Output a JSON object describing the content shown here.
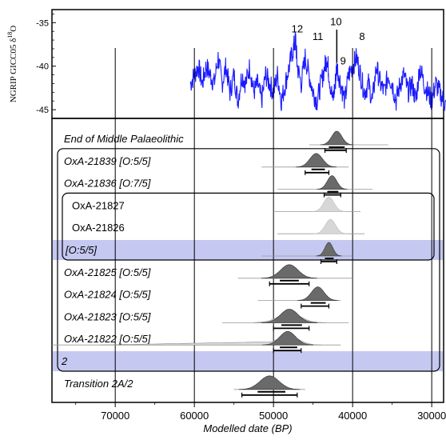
{
  "chart_data": [
    {
      "type": "line",
      "title": "",
      "ylabel": "NGRIP GICC05 δ¹⁸O",
      "ylabel_main": "NGRIP GICC05 δ",
      "ylabel_sup": "18",
      "ylabel_tail": "O",
      "ylim": [
        -46,
        -33.5
      ],
      "yticks": [
        -35,
        -40,
        -45
      ],
      "ytick_labels": [
        "-35",
        "-40",
        "-45"
      ],
      "line_color": "#1a1aff",
      "series": [
        {
          "x": [
            60500,
            60000,
            59500,
            59000,
            58500,
            58000,
            57500,
            57000,
            56500,
            56000,
            55500,
            55000,
            54500,
            54000,
            53500,
            53000,
            52500,
            52000,
            51500,
            51000,
            50500,
            50000,
            49500,
            49000,
            48500,
            48000,
            47500,
            47200,
            47000,
            46500,
            46000,
            45500,
            45000,
            44500,
            44000,
            43500,
            43200,
            43000,
            42500,
            42200,
            42000,
            41500,
            41000,
            40500,
            40000,
            39500,
            39000,
            38500,
            38000,
            37500,
            37000,
            36500,
            36000,
            35500,
            35000,
            34500,
            34000,
            33500,
            33000,
            32500,
            32000,
            31500,
            31000,
            30500,
            30000,
            29500,
            29000,
            28500,
            28000
          ],
          "y": [
            -42,
            -41,
            -40,
            -42,
            -40,
            -41,
            -42,
            -39,
            -42,
            -40,
            -43,
            -41,
            -44,
            -41,
            -42,
            -40,
            -43,
            -42,
            -44,
            -41,
            -42,
            -43,
            -41,
            -44,
            -42,
            -40,
            -38,
            -37,
            -40,
            -42,
            -39,
            -41,
            -43,
            -44,
            -42,
            -40,
            -39,
            -41,
            -44,
            -42,
            -40,
            -42,
            -44,
            -41,
            -40,
            -39,
            -41,
            -43,
            -42,
            -44,
            -40,
            -42,
            -43,
            -41,
            -42,
            -44,
            -42,
            -41,
            -43,
            -42,
            -44,
            -40,
            -42,
            -43,
            -44,
            -42,
            -43,
            -44,
            -45
          ]
        }
      ],
      "annotations": [
        {
          "text": "12",
          "x": 47000,
          "y": -36.1
        },
        {
          "text": "11",
          "x": 44400,
          "y": -37
        },
        {
          "text": "10",
          "x": 42100,
          "y": -35.3
        },
        {
          "text": "9",
          "x": 41200,
          "y": -39.8
        },
        {
          "text": "8",
          "x": 38800,
          "y": -37
        }
      ],
      "marker_x": 42000
    },
    {
      "type": "ridgeline",
      "xlabel": "Modelled date (BP)",
      "xlim": [
        78000,
        28500
      ],
      "xticks": [
        70000,
        60000,
        50000,
        40000,
        30000
      ],
      "xtick_labels": [
        "70000",
        "60000",
        "50000",
        "40000",
        "30000"
      ],
      "gridlines_x": [
        70000,
        60000,
        50000,
        40000,
        30000
      ],
      "rows": [
        {
          "label": "End of Middle Palaeolithic",
          "mean": 42000,
          "sd": 650,
          "range68": [
            43000,
            41000
          ],
          "range95": [
            43500,
            40800
          ],
          "prior": [
            45500,
            35500
          ]
        },
        {
          "label": "OxA-21839 [O:5/5]",
          "mean": 44600,
          "sd": 800,
          "range68": [
            45200,
            43500
          ],
          "range95": [
            46000,
            43000
          ],
          "prior": [
            51500,
            40500
          ]
        },
        {
          "label": "OxA-21836 [O:7/5]",
          "mean": 42600,
          "sd": 600,
          "range68": [
            43200,
            41800
          ],
          "range95": [
            43600,
            41500
          ],
          "prior": [
            49500,
            37500
          ]
        },
        {
          "label": "OxA-21827",
          "mean": 43000,
          "sd": 650,
          "range68": null,
          "range95": null,
          "prior": [
            50000,
            39000
          ],
          "light": true
        },
        {
          "label": "OxA-21826",
          "mean": 42800,
          "sd": 650,
          "range68": null,
          "range95": null,
          "prior": [
            49500,
            38500
          ],
          "light": true
        },
        {
          "label": "[O:5/5]",
          "mean": 43000,
          "sd": 500,
          "range68": [
            43500,
            42400
          ],
          "range95": [
            44000,
            42000
          ],
          "prior": [
            51500,
            40000
          ],
          "highlight": true
        },
        {
          "label": "OxA-21825 [O:5/5]",
          "mean": 48000,
          "sd": 1100,
          "range68": [
            49200,
            46800
          ],
          "range95": [
            50500,
            45500
          ],
          "prior": [
            54500,
            40000
          ]
        },
        {
          "label": "OxA-21824 [O:5/5]",
          "mean": 44400,
          "sd": 800,
          "range68": [
            45300,
            43400
          ],
          "range95": [
            46500,
            43000
          ],
          "prior": [
            52000,
            41500
          ]
        },
        {
          "label": "OxA-21823 [O:5/5]",
          "mean": 48000,
          "sd": 1100,
          "range68": [
            49000,
            46400
          ],
          "range95": [
            50000,
            45500
          ],
          "prior": [
            56500,
            40500
          ],
          "tail": 52500
        },
        {
          "label": "OxA-21822 [O:5/5]",
          "mean": 48200,
          "sd": 1000,
          "range68": [
            49200,
            47000
          ],
          "range95": [
            50000,
            46500
          ],
          "prior": [
            78000,
            41500
          ],
          "tail": 72000
        },
        {
          "label": "2",
          "highlight": true,
          "empty": true
        },
        {
          "label": "Transition 2A/2",
          "mean": 50500,
          "sd": 1200,
          "range68": [
            52000,
            48500
          ],
          "range95": [
            54000,
            47000
          ],
          "prior": [
            55000,
            46000
          ]
        }
      ],
      "groups": [
        {
          "from": "OxA-21839 [O:5/5]",
          "to": "2"
        },
        {
          "from": "OxA-21827",
          "to": "[O:5/5]"
        }
      ],
      "highlight_color": "#c5c8f1"
    }
  ]
}
